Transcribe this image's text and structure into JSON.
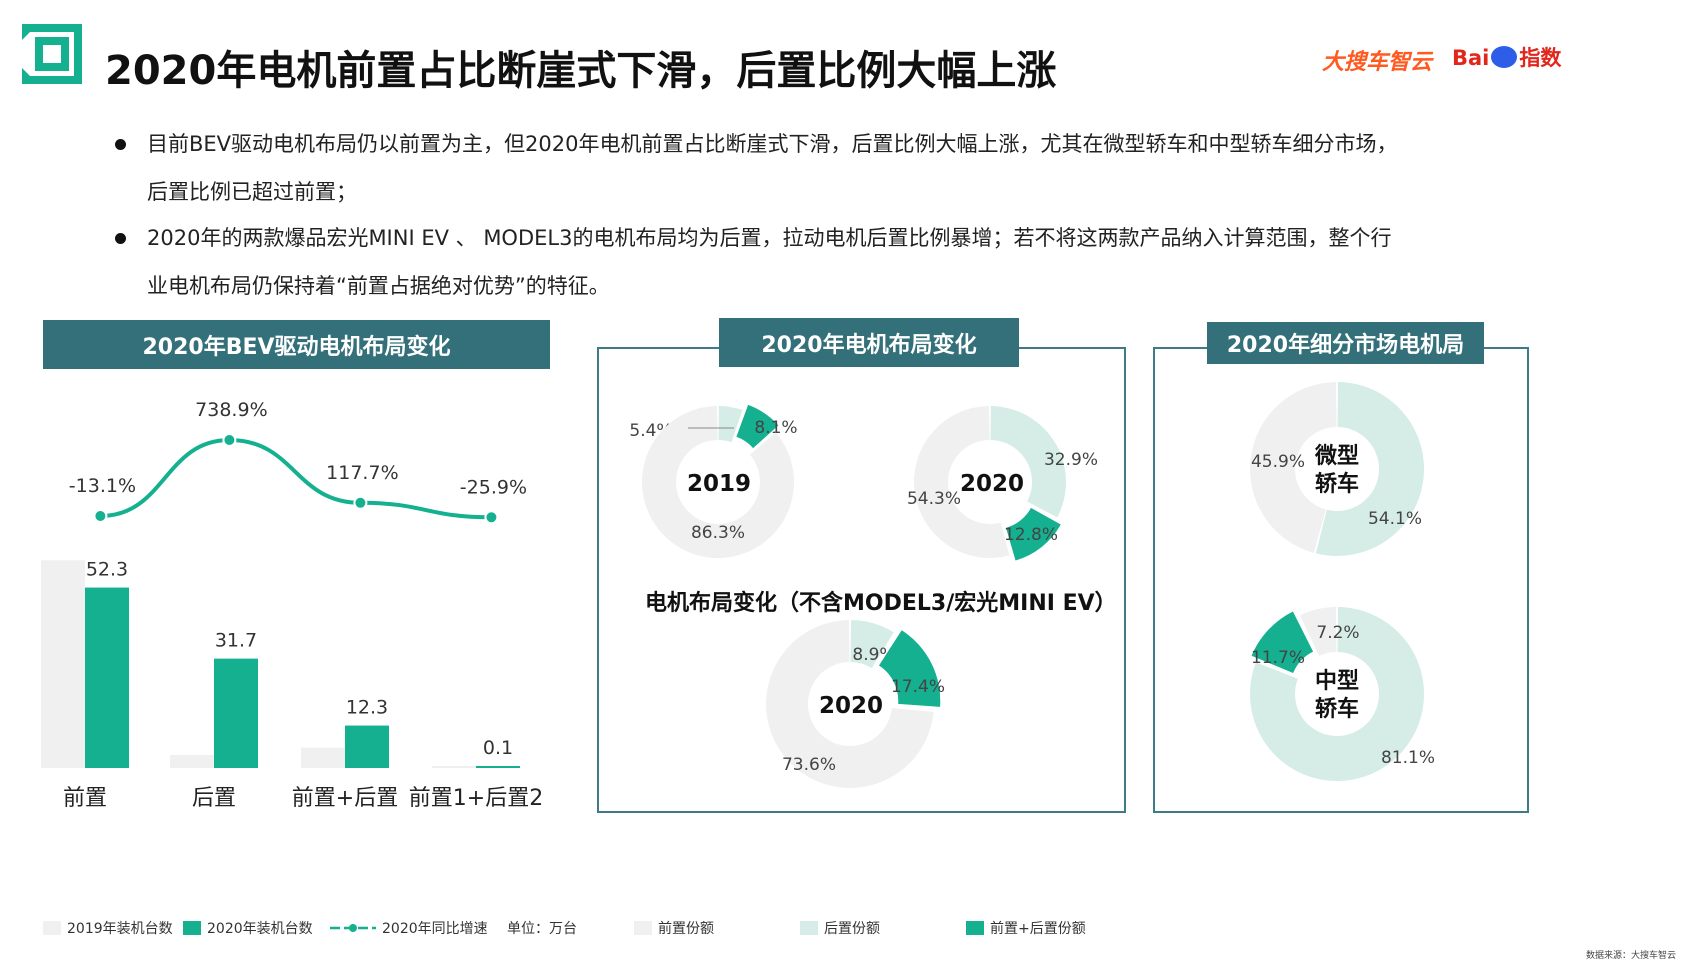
{
  "header": {
    "title": "2020年电机前置占比断崖式下滑，后置比例大幅上涨",
    "brand_left": "大搜车智云",
    "brand_right_a": "Bai",
    "brand_right_b": "指数"
  },
  "bullets": [
    {
      "line1": "目前BEV驱动电机布局仍以前置为主，但2020年电机前置占比断崖式下滑，后置比例大幅上涨，尤其在微型轿车和中型轿车细分市场，",
      "line2": "后置比例已超过前置；"
    },
    {
      "line1": "2020年的两款爆品宏光MINI EV 、 MODEL3的电机布局均为后置，拉动电机后置比例暴增；若不将这两款产品纳入计算范围，整个行",
      "line2": "业电机布局仍保持着“前置占据绝对优势”的特征。"
    }
  ],
  "colors": {
    "teal": "#14b08f",
    "light_gray": "#f0f0f0",
    "light_teal": "#d5ede6",
    "header_bg": "#34707a"
  },
  "panels": {
    "bev": {
      "title": "2020年BEV驱动电机布局变化"
    },
    "layout": {
      "title": "2020年电机布局变化",
      "subtitle": "电机布局变化（不含MODEL3/宏光MINI EV）"
    },
    "segment": {
      "title": "2020年细分市场电机局"
    }
  },
  "chart_data": [
    {
      "type": "bar",
      "title": "2020年BEV驱动电机布局变化",
      "categories": [
        "前置",
        "后置",
        "前置+后置",
        "前置1+后置2"
      ],
      "unit": "单位：万台",
      "series": [
        {
          "name": "2019年装机台数",
          "values": [
            60.2,
            3.8,
            5.9,
            0.1
          ],
          "color": "#f0f0f0"
        },
        {
          "name": "2020年装机台数",
          "values": [
            52.3,
            31.7,
            12.3,
            0.1
          ],
          "color": "#14b08f"
        }
      ],
      "line_series": {
        "name": "2020年同比增速",
        "values": [
          -13.1,
          738.9,
          117.7,
          -25.9
        ],
        "labels": [
          "-13.1%",
          "738.9%",
          "117.7%",
          "-25.9%"
        ]
      }
    },
    {
      "type": "pie",
      "center": "2019",
      "slices": [
        {
          "name": "前置份额",
          "value": 86.3,
          "label": "86.3%"
        },
        {
          "name": "后置份额",
          "value": 5.4,
          "label": "5.4%"
        },
        {
          "name": "前置+后置份额",
          "value": 8.1,
          "label": "8.1%"
        }
      ]
    },
    {
      "type": "pie",
      "center": "2020",
      "slices": [
        {
          "name": "前置份额",
          "value": 54.3,
          "label": "54.3%"
        },
        {
          "name": "后置份额",
          "value": 32.9,
          "label": "32.9%"
        },
        {
          "name": "前置+后置份额",
          "value": 12.8,
          "label": "12.8%"
        }
      ]
    },
    {
      "type": "pie",
      "title": "电机布局变化（不含MODEL3/宏光MINI EV）",
      "center": "2020",
      "slices": [
        {
          "name": "前置份额",
          "value": 73.6,
          "label": "73.6%"
        },
        {
          "name": "后置份额",
          "value": 8.9,
          "label": "8.9%"
        },
        {
          "name": "前置+后置份额",
          "value": 17.4,
          "label": "17.4%"
        }
      ]
    },
    {
      "type": "pie",
      "center": "微型轿车",
      "center_lines": [
        "微型",
        "轿车"
      ],
      "slices": [
        {
          "name": "前置份额",
          "value": 45.9,
          "label": "45.9%"
        },
        {
          "name": "后置份额",
          "value": 54.1,
          "label": "54.1%"
        }
      ]
    },
    {
      "type": "pie",
      "center": "中型轿车",
      "center_lines": [
        "中型",
        "轿车"
      ],
      "slices": [
        {
          "name": "前置份额",
          "value": 7.2,
          "label": "7.2%"
        },
        {
          "name": "后置份额",
          "value": 81.1,
          "label": "81.1%"
        },
        {
          "name": "前置+后置份额",
          "value": 11.7,
          "label": "11.7%"
        }
      ]
    }
  ],
  "legend": {
    "items": [
      "2019年装机台数",
      "2020年装机台数",
      "2020年同比增速",
      "单位：万台",
      "前置份额",
      "后置份额",
      "前置+后置份额"
    ]
  },
  "footer": {
    "source": "数据来源：大搜车智云"
  }
}
